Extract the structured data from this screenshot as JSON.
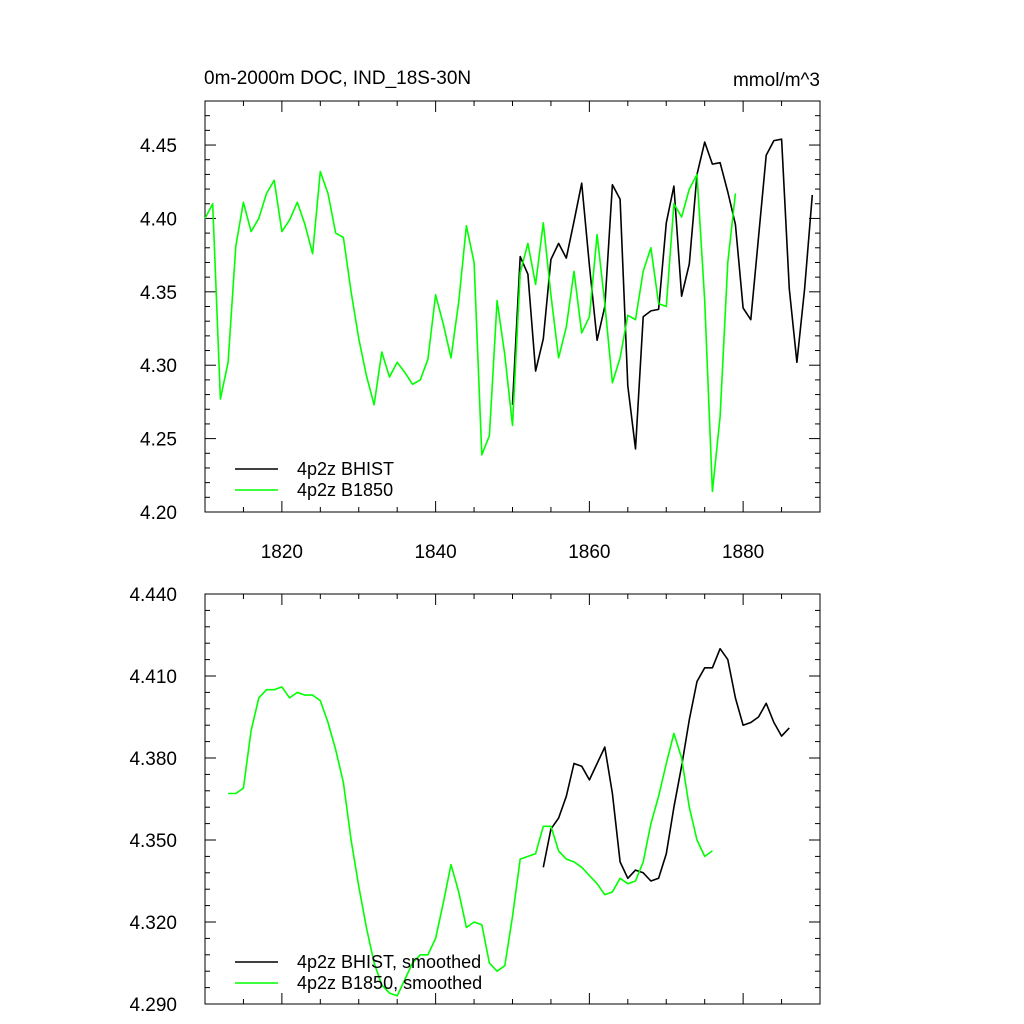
{
  "chart_data": [
    {
      "type": "line",
      "title": "0m-2000m DOC, IND_18S-30N",
      "units_label": "mmol/m^3",
      "xlim": [
        1810,
        1890
      ],
      "ylim": [
        4.2,
        4.48
      ],
      "x_ticks": [
        1820,
        1840,
        1860,
        1880
      ],
      "y_ticks": [
        4.2,
        4.25,
        4.3,
        4.35,
        4.4,
        4.45
      ],
      "y_tick_labels": [
        "4.20",
        "4.25",
        "4.30",
        "4.35",
        "4.40",
        "4.45"
      ],
      "x_tick_labels": [
        "1820",
        "1840",
        "1860",
        "1880"
      ],
      "legend_position": "bottom-left",
      "series": [
        {
          "name": "4p2z BHIST",
          "color": "#000000",
          "x": [
            1850,
            1851,
            1852,
            1853,
            1854,
            1855,
            1856,
            1857,
            1858,
            1859,
            1860,
            1861,
            1862,
            1863,
            1864,
            1865,
            1866,
            1867,
            1868,
            1869,
            1870,
            1871,
            1872,
            1873,
            1874,
            1875,
            1876,
            1877,
            1878,
            1879,
            1880,
            1881,
            1882,
            1883,
            1884,
            1885,
            1886,
            1887,
            1888,
            1889
          ],
          "y": [
            4.273,
            4.374,
            4.362,
            4.296,
            4.318,
            4.372,
            4.383,
            4.373,
            4.398,
            4.424,
            4.368,
            4.317,
            4.34,
            4.423,
            4.413,
            4.286,
            4.243,
            4.333,
            4.337,
            4.338,
            4.397,
            4.422,
            4.347,
            4.369,
            4.43,
            4.452,
            4.437,
            4.438,
            4.418,
            4.396,
            4.339,
            4.331,
            4.387,
            4.443,
            4.453,
            4.454,
            4.352,
            4.302,
            4.352,
            4.416
          ]
        },
        {
          "name": "4p2z B1850",
          "color": "#00ff00",
          "x": [
            1810,
            1811,
            1812,
            1813,
            1814,
            1815,
            1816,
            1817,
            1818,
            1819,
            1820,
            1821,
            1822,
            1823,
            1824,
            1825,
            1826,
            1827,
            1828,
            1829,
            1830,
            1831,
            1832,
            1833,
            1834,
            1835,
            1836,
            1837,
            1838,
            1839,
            1840,
            1841,
            1842,
            1843,
            1844,
            1845,
            1846,
            1847,
            1848,
            1849,
            1850,
            1851,
            1852,
            1853,
            1854,
            1855,
            1856,
            1857,
            1858,
            1859,
            1860,
            1861,
            1862,
            1863,
            1864,
            1865,
            1866,
            1867,
            1868,
            1869,
            1870,
            1871,
            1872,
            1873,
            1874,
            1875,
            1876,
            1877,
            1878,
            1879
          ],
          "y": [
            4.4,
            4.41,
            4.277,
            4.302,
            4.381,
            4.411,
            4.391,
            4.4,
            4.417,
            4.426,
            4.391,
            4.399,
            4.411,
            4.396,
            4.376,
            4.432,
            4.417,
            4.39,
            4.387,
            4.35,
            4.318,
            4.293,
            4.273,
            4.309,
            4.292,
            4.302,
            4.295,
            4.287,
            4.29,
            4.304,
            4.348,
            4.328,
            4.305,
            4.343,
            4.395,
            4.37,
            4.239,
            4.252,
            4.344,
            4.307,
            4.259,
            4.363,
            4.383,
            4.355,
            4.397,
            4.348,
            4.305,
            4.326,
            4.364,
            4.322,
            4.333,
            4.389,
            4.342,
            4.288,
            4.305,
            4.334,
            4.331,
            4.364,
            4.38,
            4.342,
            4.34,
            4.41,
            4.401,
            4.42,
            4.43,
            4.344,
            4.214,
            4.265,
            4.37,
            4.417
          ]
        }
      ]
    },
    {
      "type": "line",
      "title": "",
      "xlim": [
        1810,
        1890
      ],
      "ylim": [
        4.29,
        4.44
      ],
      "x_ticks": [
        1820,
        1840,
        1860,
        1880
      ],
      "y_ticks": [
        4.29,
        4.32,
        4.35,
        4.38,
        4.41,
        4.44
      ],
      "y_tick_labels": [
        "4.290",
        "4.320",
        "4.350",
        "4.380",
        "4.410",
        "4.440"
      ],
      "legend_position": "bottom-left",
      "series": [
        {
          "name": "4p2z BHIST, smoothed",
          "color": "#000000",
          "x": [
            1854,
            1855,
            1856,
            1857,
            1858,
            1859,
            1860,
            1861,
            1862,
            1863,
            1864,
            1865,
            1866,
            1867,
            1868,
            1869,
            1870,
            1871,
            1872,
            1873,
            1874,
            1875,
            1876,
            1877,
            1878,
            1879,
            1880,
            1881,
            1882,
            1883,
            1884,
            1885,
            1886
          ],
          "y": [
            4.34,
            4.354,
            4.358,
            4.366,
            4.378,
            4.377,
            4.372,
            4.378,
            4.384,
            4.367,
            4.342,
            4.336,
            4.339,
            4.338,
            4.335,
            4.336,
            4.345,
            4.362,
            4.377,
            4.394,
            4.408,
            4.413,
            4.413,
            4.42,
            4.416,
            4.402,
            4.392,
            4.393,
            4.395,
            4.4,
            4.393,
            4.388,
            4.391
          ]
        },
        {
          "name": "4p2z B1850, smoothed",
          "color": "#00ff00",
          "x": [
            1813,
            1814,
            1815,
            1816,
            1817,
            1818,
            1819,
            1820,
            1821,
            1822,
            1823,
            1824,
            1825,
            1826,
            1827,
            1828,
            1829,
            1830,
            1831,
            1832,
            1833,
            1834,
            1835,
            1836,
            1837,
            1838,
            1839,
            1840,
            1841,
            1842,
            1843,
            1844,
            1845,
            1846,
            1847,
            1848,
            1849,
            1850,
            1851,
            1852,
            1853,
            1854,
            1855,
            1856,
            1857,
            1858,
            1859,
            1860,
            1861,
            1862,
            1863,
            1864,
            1865,
            1866,
            1867,
            1868,
            1869,
            1870,
            1871,
            1872,
            1873,
            1874,
            1875,
            1876
          ],
          "y": [
            4.367,
            4.367,
            4.369,
            4.39,
            4.402,
            4.405,
            4.405,
            4.406,
            4.402,
            4.404,
            4.403,
            4.403,
            4.401,
            4.393,
            4.383,
            4.371,
            4.35,
            4.333,
            4.318,
            4.305,
            4.297,
            4.294,
            4.293,
            4.299,
            4.305,
            4.308,
            4.308,
            4.314,
            4.327,
            4.341,
            4.331,
            4.318,
            4.32,
            4.319,
            4.305,
            4.302,
            4.304,
            4.322,
            4.343,
            4.344,
            4.345,
            4.355,
            4.355,
            4.346,
            4.343,
            4.342,
            4.34,
            4.337,
            4.334,
            4.33,
            4.331,
            4.336,
            4.334,
            4.335,
            4.342,
            4.356,
            4.366,
            4.378,
            4.389,
            4.38,
            4.362,
            4.35,
            4.344,
            4.346
          ]
        }
      ]
    }
  ]
}
